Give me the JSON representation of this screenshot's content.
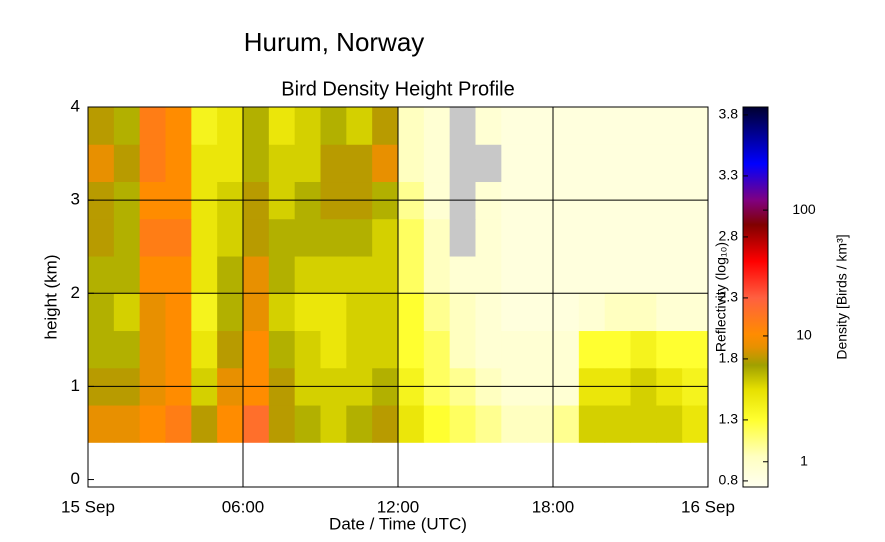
{
  "chart_data": {
    "type": "heatmap",
    "title": "Hurum, Norway",
    "subtitle": "Bird Density Height Profile",
    "x_label": "Date / Time (UTC)",
    "y_label": "height (km)",
    "colorbar_label": "Reflectivity (log₁₀)",
    "density_label": "Density [Birds / km³]",
    "xlim": [
      0,
      24
    ],
    "xticks": [
      {
        "value": 0,
        "label": "15 Sep"
      },
      {
        "value": 6,
        "label": "06:00"
      },
      {
        "value": 12,
        "label": "12:00"
      },
      {
        "value": 18,
        "label": "18:00"
      },
      {
        "value": 24,
        "label": "16 Sep"
      }
    ],
    "ylim": [
      -0.08,
      4
    ],
    "yticks": [
      0,
      1,
      2,
      3,
      4
    ],
    "grid": true,
    "x_edges": [
      0,
      1,
      2,
      3,
      4,
      5,
      6,
      7,
      8,
      9,
      10,
      11,
      12,
      13,
      14,
      15,
      16,
      17,
      18,
      19,
      20,
      21,
      22,
      23,
      24
    ],
    "y_edges": [
      0.4,
      0.8,
      1.2,
      1.6,
      2.0,
      2.4,
      2.8,
      3.2,
      3.6,
      4.0
    ],
    "z": [
      [
        1.9,
        1.9,
        2.0,
        2.1,
        1.8,
        2.0,
        2.2,
        1.8,
        1.7,
        1.6,
        1.7,
        1.8,
        1.5,
        1.3,
        1.2,
        1.1,
        1.0,
        1.0,
        1.1,
        1.6,
        1.6,
        1.6,
        1.6,
        1.5
      ],
      [
        1.8,
        1.8,
        1.9,
        2.0,
        1.6,
        1.9,
        2.0,
        1.8,
        1.6,
        1.6,
        1.6,
        1.7,
        1.4,
        1.2,
        1.1,
        1.0,
        0.9,
        0.9,
        0.9,
        1.5,
        1.5,
        1.6,
        1.5,
        1.4
      ],
      [
        1.7,
        1.7,
        1.9,
        2.0,
        1.5,
        1.8,
        2.0,
        1.7,
        1.6,
        1.5,
        1.6,
        1.6,
        1.3,
        1.2,
        1.0,
        0.9,
        0.9,
        0.9,
        0.9,
        1.3,
        1.3,
        1.4,
        1.3,
        1.3
      ],
      [
        1.7,
        1.6,
        1.9,
        2.0,
        1.4,
        1.7,
        1.9,
        1.6,
        1.5,
        1.5,
        1.6,
        1.6,
        1.3,
        1.1,
        1.0,
        0.9,
        0.85,
        0.85,
        0.85,
        0.9,
        1.0,
        1.0,
        0.9,
        0.9
      ],
      [
        1.7,
        1.7,
        2.0,
        2.0,
        1.5,
        1.7,
        1.9,
        1.7,
        1.6,
        1.6,
        1.6,
        1.6,
        1.2,
        1.0,
        0.9,
        0.9,
        0.85,
        0.85,
        0.85,
        0.85,
        0.85,
        0.85,
        0.85,
        0.85
      ],
      [
        1.8,
        1.7,
        2.1,
        2.1,
        1.5,
        1.6,
        1.8,
        1.7,
        1.7,
        1.7,
        1.7,
        1.6,
        1.2,
        1.0,
        null,
        0.9,
        0.85,
        0.85,
        0.85,
        0.85,
        0.85,
        0.85,
        0.85,
        0.85
      ],
      [
        1.8,
        1.7,
        2.0,
        2.0,
        1.5,
        1.6,
        1.8,
        1.6,
        1.7,
        1.8,
        1.8,
        1.7,
        1.1,
        0.9,
        null,
        0.9,
        0.85,
        0.85,
        0.85,
        0.85,
        0.85,
        0.85,
        0.85,
        0.85
      ],
      [
        1.9,
        1.8,
        2.1,
        2.0,
        1.5,
        1.5,
        1.7,
        1.6,
        1.6,
        1.8,
        1.8,
        1.9,
        1.0,
        0.9,
        null,
        null,
        0.85,
        0.85,
        0.85,
        0.85,
        0.85,
        0.85,
        0.85,
        0.85
      ],
      [
        1.8,
        1.7,
        2.1,
        2.0,
        1.4,
        1.5,
        1.7,
        1.5,
        1.6,
        1.7,
        1.6,
        1.8,
        1.0,
        0.9,
        null,
        0.9,
        0.85,
        0.85,
        0.85,
        0.85,
        0.85,
        0.85,
        0.85,
        0.85
      ]
    ],
    "missing_color": "#c8c8c8",
    "clim": [
      0.75,
      3.865
    ],
    "cticks": [
      0.8,
      1.3,
      1.8,
      2.3,
      2.8,
      3.3,
      3.8
    ],
    "density_lim": [
      0.63,
      660
    ],
    "density_ticks": [
      1,
      10,
      100
    ],
    "density_log": true,
    "colorscale": [
      [
        0.75,
        "#fffff0"
      ],
      [
        1.0,
        "#ffffc0"
      ],
      [
        1.3,
        "#ffff30"
      ],
      [
        1.55,
        "#e6e000"
      ],
      [
        1.75,
        "#a0a000"
      ],
      [
        1.9,
        "#e89000"
      ],
      [
        2.0,
        "#ff8c00"
      ],
      [
        2.3,
        "#ff6040"
      ],
      [
        2.6,
        "#ff0000"
      ],
      [
        2.9,
        "#800000"
      ],
      [
        3.1,
        "#800080"
      ],
      [
        3.4,
        "#0000ff"
      ],
      [
        3.865,
        "#000030"
      ]
    ]
  }
}
